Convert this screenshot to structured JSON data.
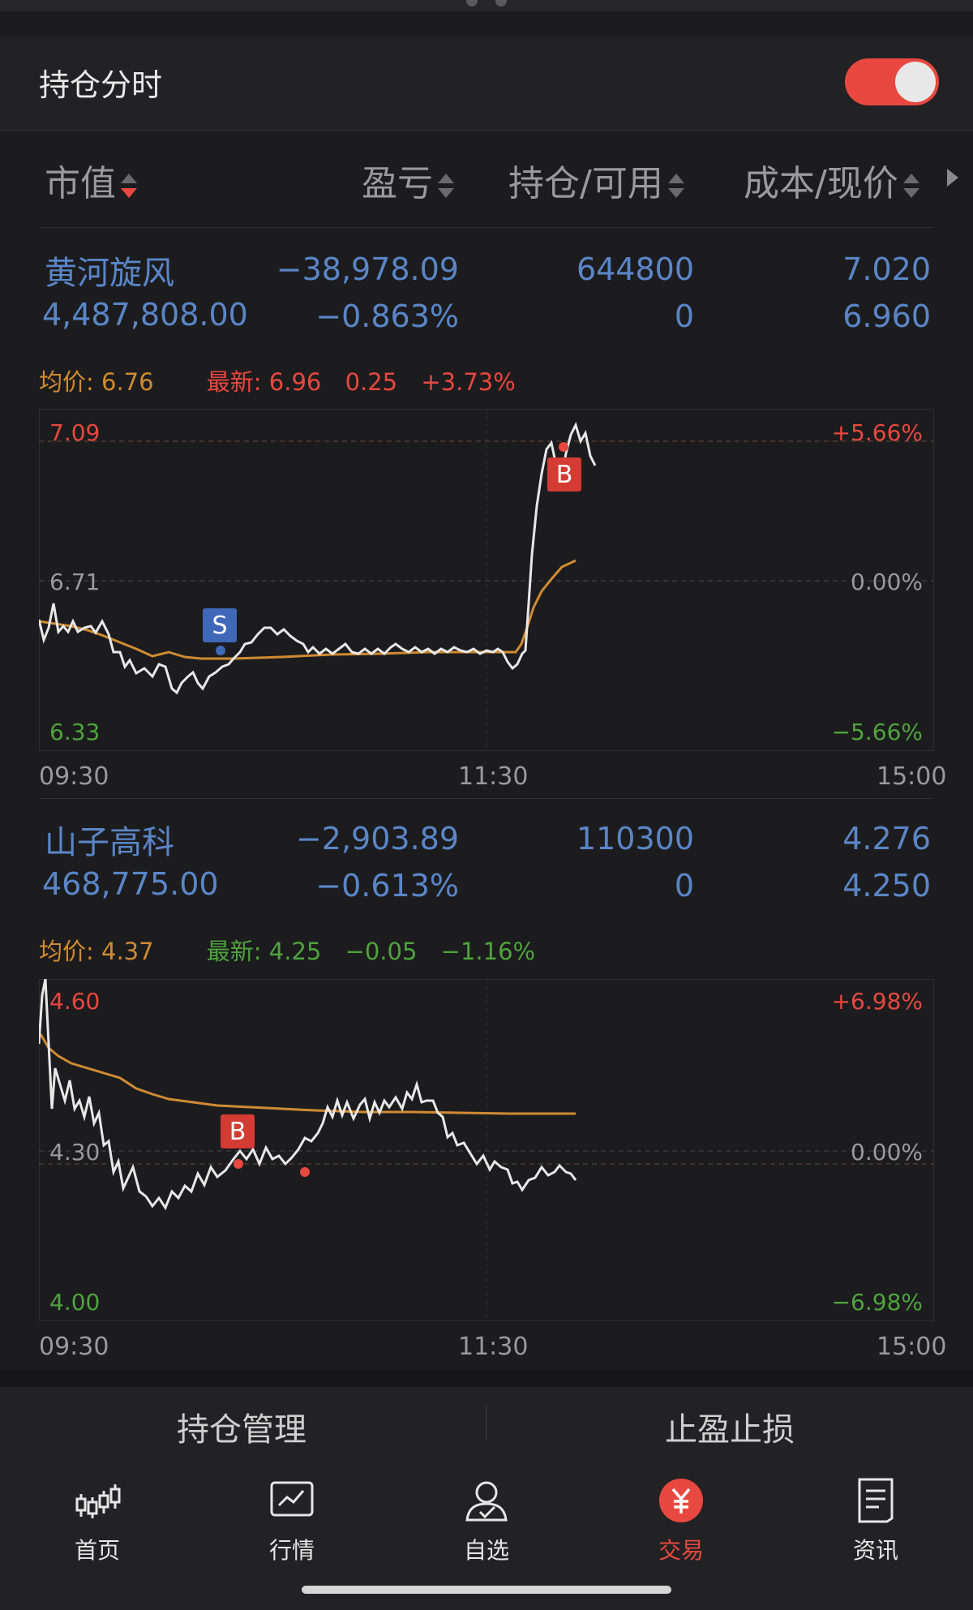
{
  "header": {
    "title": "持仓分时",
    "toggle_on": true
  },
  "columns": [
    {
      "label": "市值",
      "sort": "desc"
    },
    {
      "label": "盈亏",
      "sort": "none"
    },
    {
      "label": "持仓/可用",
      "sort": "none"
    },
    {
      "label": "成本/现价",
      "sort": "none"
    }
  ],
  "holdings": [
    {
      "name": "黄河旋风",
      "market_value": "4,487,808.00",
      "pnl": "−38,978.09",
      "pnl_pct": "−0.863%",
      "position": "644800",
      "available": "0",
      "cost": "7.020",
      "price": "6.960",
      "avg_label": "均价: 6.76",
      "latest_label": "最新: 6.96",
      "change": "0.25",
      "change_pct": "+3.73%",
      "change_direction": "up",
      "axis": {
        "high": "7.09",
        "mid": "6.71",
        "low": "6.33",
        "high_pct": "+5.66%",
        "mid_pct": "0.00%",
        "low_pct": "−5.66%"
      },
      "time_labels": [
        "09:30",
        "11:30",
        "15:00"
      ],
      "markers": [
        {
          "label": "S",
          "type": "sell"
        },
        {
          "label": "B",
          "type": "buy"
        }
      ]
    },
    {
      "name": "山子高科",
      "market_value": "468,775.00",
      "pnl": "−2,903.89",
      "pnl_pct": "−0.613%",
      "position": "110300",
      "available": "0",
      "cost": "4.276",
      "price": "4.250",
      "avg_label": "均价: 4.37",
      "latest_label": "最新: 4.25",
      "change": "−0.05",
      "change_pct": "−1.16%",
      "change_direction": "down",
      "axis": {
        "high": "4.60",
        "mid": "4.30",
        "low": "4.00",
        "high_pct": "+6.98%",
        "mid_pct": "0.00%",
        "low_pct": "−6.98%"
      },
      "time_labels": [
        "09:30",
        "11:30",
        "15:00"
      ],
      "markers": [
        {
          "label": "B",
          "type": "buy"
        }
      ]
    }
  ],
  "actions": {
    "manage": "持仓管理",
    "stop": "止盈止损"
  },
  "tabs": [
    {
      "label": "首页",
      "icon": "candlestick-icon",
      "active": false
    },
    {
      "label": "行情",
      "icon": "chart-trend-icon",
      "active": false
    },
    {
      "label": "自选",
      "icon": "user-check-icon",
      "active": false
    },
    {
      "label": "交易",
      "icon": "yen-icon",
      "active": true
    },
    {
      "label": "资讯",
      "icon": "document-icon",
      "active": false
    }
  ],
  "colors": {
    "accent": "#e8483f",
    "blue": "#5a86c8",
    "orange": "#d08b32",
    "green": "#4fa33d"
  }
}
